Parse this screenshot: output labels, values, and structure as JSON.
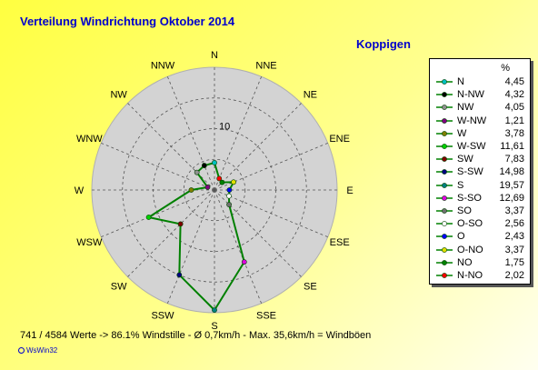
{
  "title": "Verteilung Windrichtung    Oktober 2014",
  "subtitle": "Koppigen",
  "footer": "741 / 4584 Werte  -> 86.1% Windstille   -   Ø 0,7km/h  -  Max. 35,6km/h = Windböen",
  "brand": "WsWin32",
  "legend_unit": "%",
  "colors": {
    "grid_bg": "#d3d3d3",
    "series": "#008000"
  },
  "chart_data": {
    "type": "radar",
    "title": "Verteilung Windrichtung    Oktober 2014",
    "subtitle": "Koppigen",
    "unit": "%",
    "rmax": 20,
    "ring_label": "10",
    "direction_labels": [
      "N",
      "NNE",
      "NE",
      "ENE",
      "E",
      "ESE",
      "SE",
      "SSE",
      "S",
      "SSW",
      "SW",
      "WSW",
      "W",
      "WNW",
      "NW",
      "NNW"
    ],
    "series": [
      {
        "name": "N",
        "compass": 0,
        "value": 4.45,
        "value_label": "4,45",
        "color": "#00c0c0"
      },
      {
        "name": "N-NW",
        "compass": 337.5,
        "value": 4.32,
        "value_label": "4,32",
        "color": "#000000"
      },
      {
        "name": "NW",
        "compass": 315,
        "value": 4.05,
        "value_label": "4,05",
        "color": "#909090"
      },
      {
        "name": "W-NW",
        "compass": 292.5,
        "value": 1.21,
        "value_label": "1,21",
        "color": "#800080"
      },
      {
        "name": "W",
        "compass": 270,
        "value": 3.78,
        "value_label": "3,78",
        "color": "#808000"
      },
      {
        "name": "W-SW",
        "compass": 247.5,
        "value": 11.61,
        "value_label": "11,61",
        "color": "#00d000"
      },
      {
        "name": "SW",
        "compass": 225,
        "value": 7.83,
        "value_label": "7,83",
        "color": "#800000"
      },
      {
        "name": "S-SW",
        "compass": 202.5,
        "value": 14.98,
        "value_label": "14,98",
        "color": "#000080"
      },
      {
        "name": "S",
        "compass": 180,
        "value": 19.57,
        "value_label": "19,57",
        "color": "#008080"
      },
      {
        "name": "S-SO",
        "compass": 157.5,
        "value": 12.69,
        "value_label": "12,69",
        "color": "#e000e0"
      },
      {
        "name": "SO",
        "compass": 135,
        "value": 3.37,
        "value_label": "3,37",
        "color": "#707070"
      },
      {
        "name": "O-SO",
        "compass": 112.5,
        "value": 2.56,
        "value_label": "2,56",
        "color": "#ffffff"
      },
      {
        "name": "O",
        "compass": 90,
        "value": 2.43,
        "value_label": "2,43",
        "color": "#0000ff"
      },
      {
        "name": "O-NO",
        "compass": 67.5,
        "value": 3.37,
        "value_label": "3,37",
        "color": "#e0e000"
      },
      {
        "name": "NO",
        "compass": 45,
        "value": 1.75,
        "value_label": "1,75",
        "color": "#008000"
      },
      {
        "name": "N-NO",
        "compass": 22.5,
        "value": 2.02,
        "value_label": "2,02",
        "color": "#ff0000"
      }
    ]
  }
}
